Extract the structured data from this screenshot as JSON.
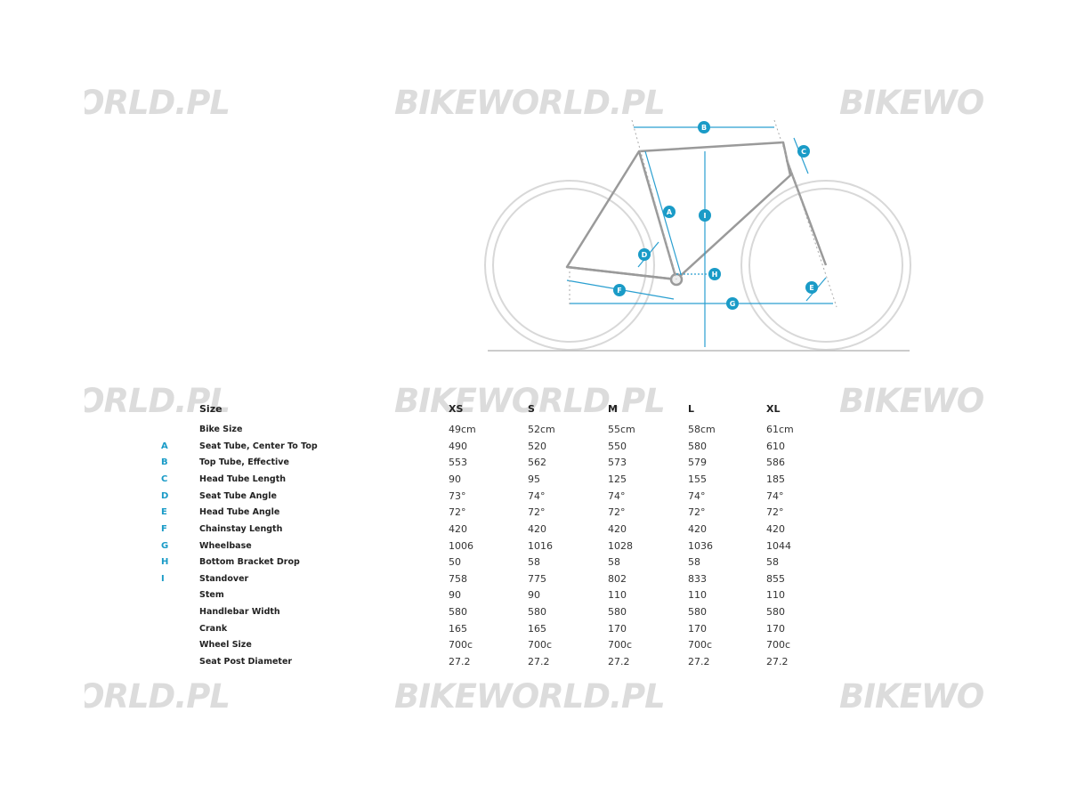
{
  "watermark": "BIKEWORLD.PL",
  "diagram": {
    "markers": [
      "A",
      "B",
      "C",
      "D",
      "E",
      "F",
      "G",
      "H",
      "I"
    ]
  },
  "table": {
    "header": [
      "Size",
      "XS",
      "S",
      "M",
      "L",
      "XL"
    ],
    "rows": [
      {
        "label": "Bike Size",
        "values": [
          "49cm",
          "52cm",
          "55cm",
          "58cm",
          "61cm"
        ]
      },
      {
        "key": "A",
        "label": "Seat Tube, Center To Top",
        "values": [
          "490",
          "520",
          "550",
          "580",
          "610"
        ]
      },
      {
        "key": "B",
        "label": "Top Tube, Effective",
        "values": [
          "553",
          "562",
          "573",
          "579",
          "586"
        ]
      },
      {
        "key": "C",
        "label": "Head Tube Length",
        "values": [
          "90",
          "95",
          "125",
          "155",
          "185"
        ]
      },
      {
        "key": "D",
        "label": "Seat Tube Angle",
        "values": [
          "73°",
          "74°",
          "74°",
          "74°",
          "74°"
        ]
      },
      {
        "key": "E",
        "label": "Head Tube Angle",
        "values": [
          "72°",
          "72°",
          "72°",
          "72°",
          "72°"
        ]
      },
      {
        "key": "F",
        "label": "Chainstay Length",
        "values": [
          "420",
          "420",
          "420",
          "420",
          "420"
        ]
      },
      {
        "key": "G",
        "label": "Wheelbase",
        "values": [
          "1006",
          "1016",
          "1028",
          "1036",
          "1044"
        ]
      },
      {
        "key": "H",
        "label": "Bottom Bracket Drop",
        "values": [
          "50",
          "58",
          "58",
          "58",
          "58"
        ]
      },
      {
        "key": "I",
        "label": "Standover",
        "values": [
          "758",
          "775",
          "802",
          "833",
          "855"
        ]
      },
      {
        "label": "Stem",
        "values": [
          "90",
          "90",
          "110",
          "110",
          "110"
        ]
      },
      {
        "label": "Handlebar Width",
        "values": [
          "580",
          "580",
          "580",
          "580",
          "580"
        ]
      },
      {
        "label": "Crank",
        "values": [
          "165",
          "165",
          "170",
          "170",
          "170"
        ]
      },
      {
        "label": "Wheel Size",
        "values": [
          "700c",
          "700c",
          "700c",
          "700c",
          "700c"
        ]
      },
      {
        "label": "Seat Post Diameter",
        "values": [
          "27.2",
          "27.2",
          "27.2",
          "27.2",
          "27.2"
        ]
      }
    ]
  }
}
